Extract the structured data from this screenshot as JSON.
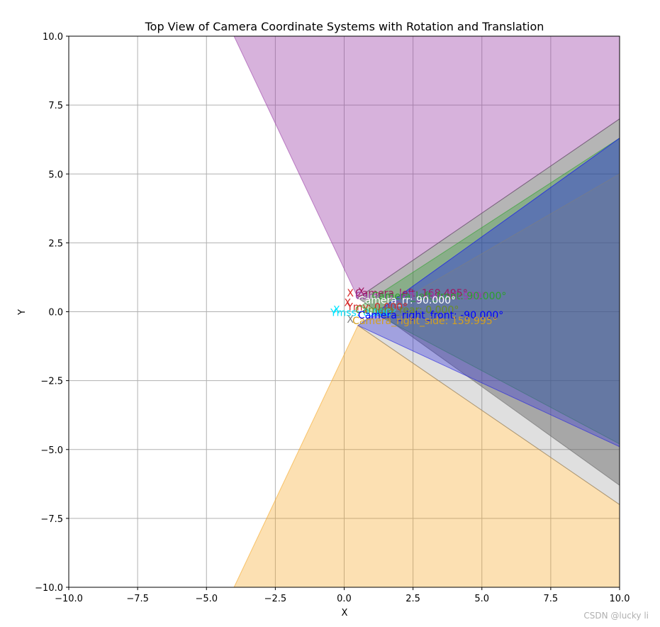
{
  "chart_data": {
    "type": "area",
    "title": "Top View of Camera Coordinate Systems with Rotation and Translation",
    "xlabel": "X",
    "ylabel": "Y",
    "xlim": [
      -10,
      10
    ],
    "ylim": [
      -10,
      10
    ],
    "xticks": [
      -10,
      -7.5,
      -5,
      -2.5,
      0,
      2.5,
      5,
      7.5,
      10
    ],
    "yticks": [
      -10,
      -7.5,
      -5,
      -2.5,
      0,
      2.5,
      5,
      7.5,
      10
    ],
    "xtick_labels": [
      "−10.0",
      "−7.5",
      "−5.0",
      "−2.5",
      "0.0",
      "2.5",
      "5.0",
      "7.5",
      "10.0"
    ],
    "ytick_labels": [
      "−10.0",
      "−7.5",
      "−5.0",
      "−2.5",
      "0.0",
      "2.5",
      "5.0",
      "7.5",
      "10.0"
    ],
    "grid": true,
    "fov_regions": [
      {
        "color": "#f5a623",
        "opacity": 0.35,
        "vertices": [
          [
            0.5,
            -0.5
          ],
          [
            -4.0,
            -10.0
          ],
          [
            10.0,
            -10.0
          ],
          [
            10.0,
            -7.0
          ]
        ]
      },
      {
        "color": "#9b3fa8",
        "opacity": 0.4,
        "vertices": [
          [
            0.5,
            0.5
          ],
          [
            -4.0,
            10.0
          ],
          [
            10.0,
            10.0
          ],
          [
            10.0,
            7.0
          ]
        ]
      },
      {
        "color": "#5a5a5a",
        "opacity": 0.45,
        "vertices": [
          [
            0.5,
            0.5
          ],
          [
            10.0,
            7.0
          ],
          [
            10.0,
            -6.3
          ]
        ]
      },
      {
        "color": "#2ca02c",
        "opacity": 0.32,
        "vertices": [
          [
            0.6,
            0.2
          ],
          [
            10.0,
            6.3
          ],
          [
            10.0,
            -4.8
          ]
        ]
      },
      {
        "color": "#0000ff",
        "opacity": 0.32,
        "vertices": [
          [
            0.5,
            -0.5
          ],
          [
            10.0,
            6.3
          ],
          [
            10.0,
            -4.9
          ]
        ]
      },
      {
        "color": "#7f7f7f",
        "opacity": 0.25,
        "vertices": [
          [
            0.5,
            -0.5
          ],
          [
            10.0,
            5.0
          ],
          [
            10.0,
            -7.0
          ]
        ]
      }
    ],
    "camera_labels": [
      {
        "text": "X",
        "x": 0.5,
        "y": 0.6,
        "color": "#a0155f"
      },
      {
        "text": "X",
        "x": 0.1,
        "y": 0.55,
        "color": "#d62728"
      },
      {
        "text": "Camera_left: 168.495°",
        "x": 0.4,
        "y": 0.55,
        "color": "#a0155f"
      },
      {
        "text": "Camera_left_side: 19.999°",
        "x": 0.4,
        "y": 0.45,
        "color": "#9b3fa8"
      },
      {
        "text": "Camera_left_front: 90.000°",
        "x": 1.0,
        "y": 0.45,
        "color": "#2ca02c"
      },
      {
        "text": "Camera_rr: 90.000°",
        "x": 0.5,
        "y": 0.3,
        "color": "#ffffff"
      },
      {
        "text": "X",
        "x": 0.0,
        "y": 0.2,
        "color": "#d62728"
      },
      {
        "text": "Ymy: 0.000°",
        "x": 0.1,
        "y": 0.05,
        "color": "#d62728"
      },
      {
        "text": "X",
        "x": -0.4,
        "y": -0.05,
        "color": "#00e5ff"
      },
      {
        "text": "Ymss: 0.000°",
        "x": -0.5,
        "y": -0.15,
        "color": "#00e5ff"
      },
      {
        "text": "Camera_rear: 0.000°",
        "x": 0.4,
        "y": -0.05,
        "color": "#6b8e23"
      },
      {
        "text": "Camera_right_front: -90.000°",
        "x": 0.5,
        "y": -0.25,
        "color": "#0000ff"
      },
      {
        "text": "X",
        "x": 0.1,
        "y": -0.4,
        "color": "#7f7f7f"
      },
      {
        "text": "Camera_right_side: 159.995°",
        "x": 0.3,
        "y": -0.45,
        "color": "#d4a020"
      }
    ]
  },
  "watermark": "CSDN @lucky li"
}
